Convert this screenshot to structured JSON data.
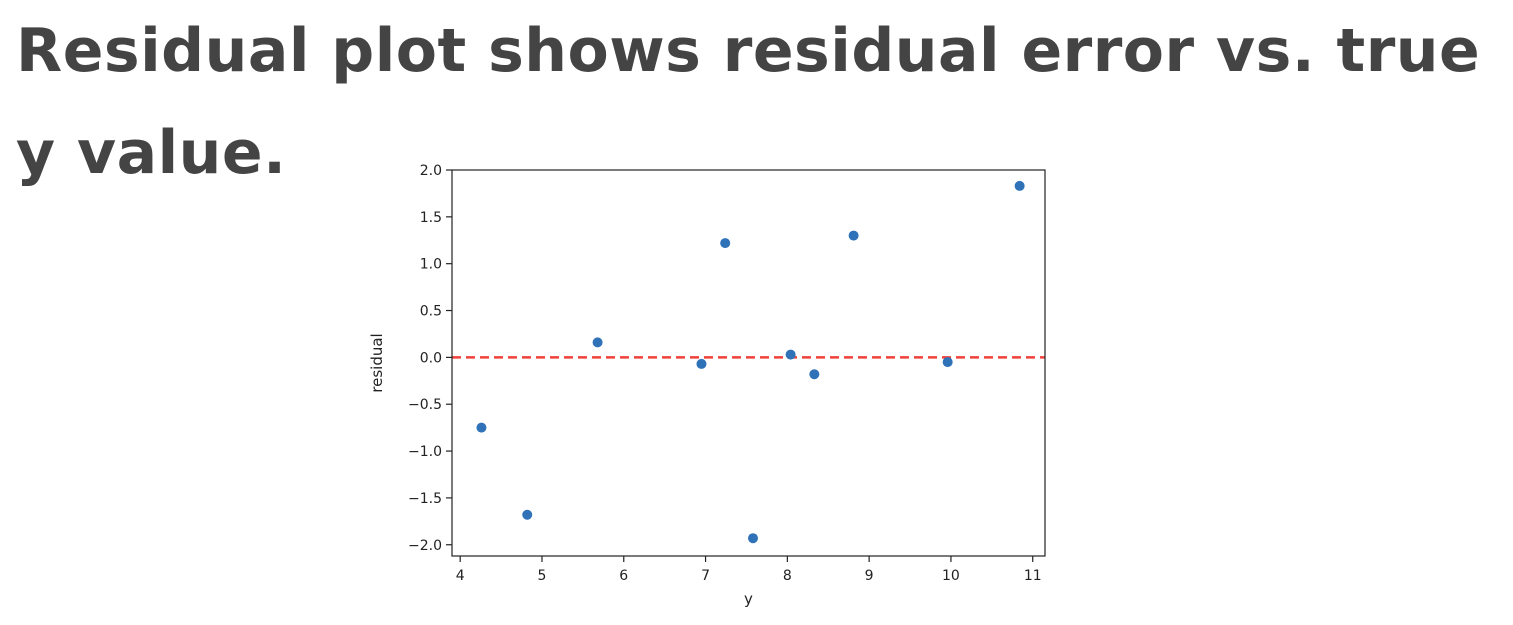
{
  "slide": {
    "title": "Residual plot shows residual error vs. true y value."
  },
  "chart_data": {
    "type": "scatter",
    "title": "",
    "xlabel": "y",
    "ylabel": "residual",
    "xlim": [
      3.9,
      11.15
    ],
    "ylim": [
      -2.12,
      2.0
    ],
    "xticks": [
      4,
      5,
      6,
      7,
      8,
      9,
      10,
      11
    ],
    "xtick_labels": [
      "4",
      "5",
      "6",
      "7",
      "8",
      "9",
      "10",
      "11"
    ],
    "yticks": [
      2.0,
      1.5,
      1.0,
      0.5,
      0.0,
      -0.5,
      -1.0,
      -1.5,
      -2.0
    ],
    "ytick_labels": [
      "2.0",
      "1.5",
      "1.0",
      "0.5",
      "0.0",
      "−0.5",
      "−1.0",
      "−1.5",
      "−2.0"
    ],
    "grid": false,
    "series": [
      {
        "points": [
          {
            "x": 4.26,
            "y": -0.75
          },
          {
            "x": 4.82,
            "y": -1.68
          },
          {
            "x": 5.68,
            "y": 0.16
          },
          {
            "x": 6.95,
            "y": -0.07
          },
          {
            "x": 7.24,
            "y": 1.22
          },
          {
            "x": 7.58,
            "y": -1.93
          },
          {
            "x": 8.04,
            "y": 0.03
          },
          {
            "x": 8.33,
            "y": -0.18
          },
          {
            "x": 8.81,
            "y": 1.3
          },
          {
            "x": 9.96,
            "y": -0.05
          },
          {
            "x": 10.84,
            "y": 1.83
          }
        ],
        "color": "#2f72b8"
      }
    ],
    "reference_line": {
      "y": 0.0,
      "style": "dashed",
      "color": "#f0413a"
    }
  }
}
